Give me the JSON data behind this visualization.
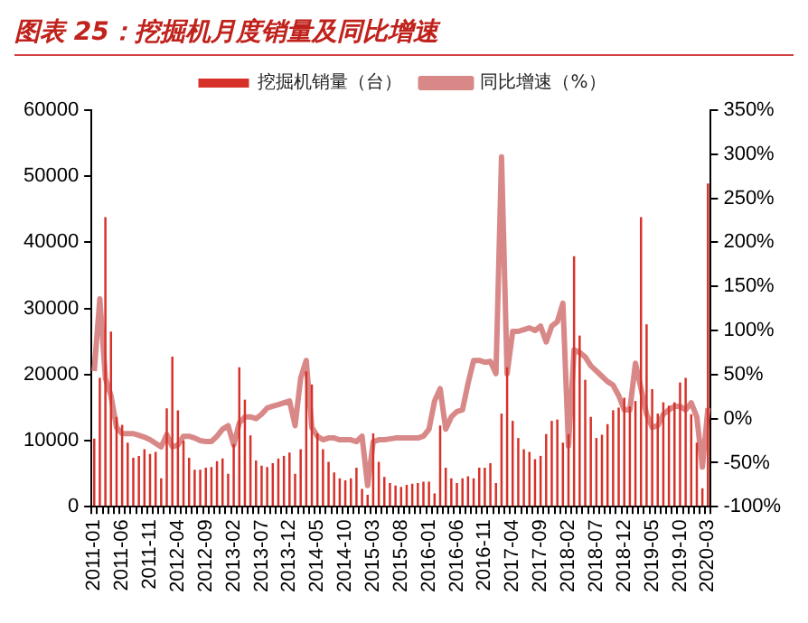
{
  "chart_data": {
    "type": "bar",
    "title": "图表 25：挖掘机月度销量及同比增速",
    "legend": "top",
    "grid": false,
    "marker": "none",
    "categories": [
      "2011-01",
      null,
      null,
      null,
      null,
      "2011-06",
      null,
      null,
      null,
      null,
      "2011-11",
      null,
      null,
      null,
      null,
      "2012-04",
      null,
      null,
      null,
      null,
      "2012-09",
      null,
      null,
      null,
      null,
      "2013-02",
      null,
      null,
      null,
      null,
      "2013-07",
      null,
      null,
      null,
      null,
      "2013-12",
      null,
      null,
      null,
      null,
      "2014-05",
      null,
      null,
      null,
      null,
      "2014-10",
      null,
      null,
      null,
      null,
      "2015-03",
      null,
      null,
      null,
      null,
      "2015-08",
      null,
      null,
      null,
      null,
      "2016-01",
      null,
      null,
      null,
      null,
      "2016-06",
      null,
      null,
      null,
      null,
      "2016-11",
      null,
      null,
      null,
      null,
      "2017-04",
      null,
      null,
      null,
      null,
      "2017-09",
      null,
      null,
      null,
      null,
      "2018-02",
      null,
      null,
      null,
      null,
      "2018-07",
      null,
      null,
      null,
      null,
      "2018-12",
      null,
      null,
      null,
      null,
      "2019-05",
      null,
      null,
      null,
      null,
      "2019-10",
      null,
      null,
      null,
      null,
      "2020-03"
    ],
    "ylim": [
      0,
      60000
    ],
    "yticks": [
      0,
      10000,
      20000,
      30000,
      40000,
      50000,
      60000
    ],
    "y2lim": [
      -100,
      350
    ],
    "y2ticks": [
      {
        "value": -100,
        "label": "-100%"
      },
      {
        "value": -50,
        "label": "-50%"
      },
      {
        "value": 0,
        "label": "0%"
      },
      {
        "value": 50,
        "label": "50%"
      },
      {
        "value": 100,
        "label": "100%"
      },
      {
        "value": 150,
        "label": "150%"
      },
      {
        "value": 200,
        "label": "200%"
      },
      {
        "value": 250,
        "label": "250%"
      },
      {
        "value": 300,
        "label": "300%"
      },
      {
        "value": 350,
        "label": "350%"
      }
    ],
    "series": [
      {
        "name": "挖掘机销量（台）",
        "color": "#d7322a",
        "values": [
          10300,
          19500,
          43800,
          26500,
          13600,
          12400,
          9700,
          7400,
          7700,
          8700,
          8000,
          8300,
          4300,
          14900,
          22700,
          14600,
          10000,
          7400,
          5600,
          5600,
          5900,
          6000,
          6900,
          7300,
          5000,
          9500,
          21100,
          16200,
          10800,
          7000,
          6200,
          6000,
          6600,
          7300,
          7700,
          8200,
          5000,
          8700,
          20500,
          18500,
          11100,
          8700,
          6800,
          5200,
          4300,
          4000,
          4300,
          5900,
          2700,
          1800,
          11100,
          6800,
          4500,
          3600,
          3200,
          3000,
          3300,
          3500,
          3600,
          3800,
          3800,
          2000,
          12300,
          5900,
          4300,
          3600,
          4300,
          4600,
          4300,
          5900,
          5900,
          6600,
          3600,
          14100,
          21100,
          13000,
          10400,
          8700,
          8300,
          7200,
          7700,
          11000,
          13000,
          13200,
          9700,
          11000,
          37900,
          25900,
          19200,
          13600,
          10400,
          10900,
          12500,
          14600,
          15000,
          16500,
          15200,
          16000,
          43800,
          27600,
          17800,
          14100,
          15800,
          15300,
          15800,
          18800,
          19500,
          14000,
          9700,
          2800,
          48900
        ]
      },
      {
        "name": "同比增速（%）",
        "type": "line",
        "axis": "y2",
        "color": "#d98888",
        "values": [
          54,
          136,
          46,
          26,
          -10,
          -17,
          -17,
          -17,
          -19,
          -21,
          -24,
          -28,
          -32,
          -18,
          -32,
          -30,
          -20,
          -20,
          -22,
          -25,
          -26,
          -26,
          -20,
          -12,
          -8,
          -30,
          -5,
          2,
          2,
          0,
          5,
          12,
          14,
          16,
          18,
          20,
          -8,
          46,
          66,
          -10,
          -20,
          -24,
          -22,
          -22,
          -24,
          -24,
          -24,
          -26,
          -20,
          -76,
          -26,
          -24,
          -24,
          -23,
          -22,
          -22,
          -22,
          -22,
          -22,
          -20,
          -12,
          20,
          34,
          -12,
          2,
          8,
          10,
          40,
          66,
          66,
          64,
          65,
          51,
          297,
          51,
          99,
          99,
          101,
          103,
          100,
          105,
          87,
          105,
          110,
          131,
          -31,
          78,
          75,
          70,
          60,
          54,
          48,
          42,
          38,
          26,
          10,
          10,
          63,
          34,
          5,
          -10,
          -8,
          5,
          10,
          14,
          14,
          10,
          18,
          2,
          -55,
          12
        ]
      }
    ]
  }
}
